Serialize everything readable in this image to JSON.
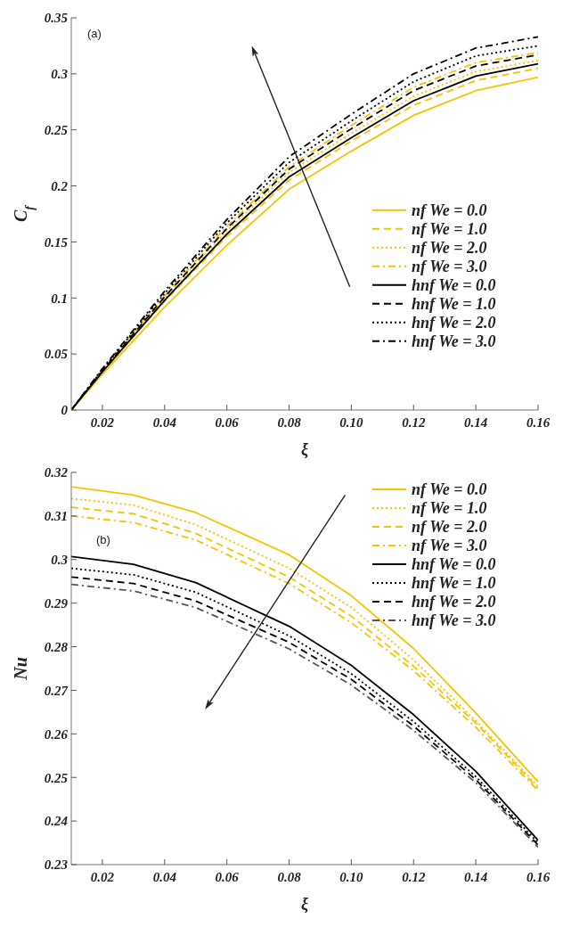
{
  "chart_data": [
    {
      "type": "line",
      "xlabel": "ξ",
      "ylabel": "C$_{f}$",
      "annotations": [
        "(a)"
      ],
      "legend": "right",
      "grid": false,
      "x": [
        0.01,
        0.02,
        0.04,
        0.06,
        0.08,
        0.1,
        0.12,
        0.14,
        0.16
      ],
      "xlim": [
        0.01,
        0.16
      ],
      "xticks": [
        0.02,
        0.04,
        0.06,
        0.08,
        {
          "value": 0.1,
          "label": "0.10"
        },
        0.12,
        0.14,
        0.16
      ],
      "ylim": [
        0,
        0.35
      ],
      "yticks": [
        0,
        0.05,
        0.1,
        0.15,
        0.2,
        0.25,
        0.3,
        0.35
      ],
      "series": [
        {
          "name": "nf We = 0.0",
          "color": "#f5c400",
          "line_style": "solid",
          "values": [
            0,
            0.032,
            0.092,
            0.147,
            0.197,
            0.231,
            0.263,
            0.285,
            0.297
          ]
        },
        {
          "name": "nf We = 1.0",
          "color": "#f5c400",
          "line_style": "dashed",
          "values": [
            0,
            0.034,
            0.097,
            0.155,
            0.205,
            0.24,
            0.272,
            0.294,
            0.305
          ]
        },
        {
          "name": "nf We = 2.0",
          "color": "#f5c400",
          "line_style": "dotted",
          "values": [
            0,
            0.035,
            0.1,
            0.16,
            0.212,
            0.247,
            0.28,
            0.302,
            0.312
          ]
        },
        {
          "name": "nf We = 3.0",
          "color": "#f5c400",
          "line_style": "dashdot",
          "values": [
            0,
            0.036,
            0.102,
            0.164,
            0.217,
            0.254,
            0.288,
            0.31,
            0.319
          ]
        },
        {
          "name": "hnf We = 0.0",
          "color": "#000000",
          "line_style": "solid",
          "values": [
            0,
            0.034,
            0.098,
            0.157,
            0.208,
            0.243,
            0.276,
            0.298,
            0.309
          ]
        },
        {
          "name": "hnf We = 1.0",
          "color": "#000000",
          "line_style": "dashed",
          "values": [
            0,
            0.035,
            0.101,
            0.162,
            0.215,
            0.251,
            0.285,
            0.307,
            0.317
          ]
        },
        {
          "name": "hnf We = 2.0",
          "color": "#000000",
          "line_style": "dotted",
          "values": [
            0,
            0.036,
            0.104,
            0.167,
            0.221,
            0.258,
            0.293,
            0.316,
            0.325
          ]
        },
        {
          "name": "hnf We = 3.0",
          "color": "#000000",
          "line_style": "dashdot",
          "values": [
            0,
            0.037,
            0.106,
            0.17,
            0.226,
            0.264,
            0.3,
            0.323,
            0.333
          ]
        }
      ]
    },
    {
      "type": "line",
      "xlabel": "ξ",
      "ylabel": "Nu",
      "annotations": [
        "(b)"
      ],
      "legend": "top right",
      "grid": false,
      "x": [
        0.01,
        0.03,
        0.05,
        0.08,
        0.1,
        0.12,
        0.14,
        0.16
      ],
      "xlim": [
        0.01,
        0.16
      ],
      "xticks": [
        0.02,
        0.04,
        0.06,
        0.08,
        {
          "value": 0.1,
          "label": "0.10"
        },
        0.12,
        0.14,
        0.16
      ],
      "ylim": [
        0.23,
        0.32
      ],
      "yticks": [
        0.23,
        0.24,
        0.25,
        0.26,
        0.27,
        0.28,
        0.29,
        0.3,
        0.31,
        0.32
      ],
      "series": [
        {
          "name": "nf We = 0.0",
          "color": "#f5c400",
          "line_style": "solid",
          "values": [
            0.3167,
            0.3148,
            0.3108,
            0.3011,
            0.2917,
            0.2796,
            0.2648,
            0.249
          ]
        },
        {
          "name": "nf We = 1.0",
          "color": "#f5c400",
          "line_style": "dotted",
          "values": [
            0.314,
            0.3125,
            0.308,
            0.298,
            0.289,
            0.277,
            0.263,
            0.248
          ]
        },
        {
          "name": "nf We = 2.0",
          "color": "#f5c400",
          "line_style": "dashed",
          "values": [
            0.312,
            0.3105,
            0.306,
            0.296,
            0.287,
            0.2755,
            0.2625,
            0.2475
          ]
        },
        {
          "name": "nf We = 3.0",
          "color": "#f5c400",
          "line_style": "dashdot",
          "values": [
            0.31,
            0.3085,
            0.3045,
            0.2945,
            0.2855,
            0.2745,
            0.2615,
            0.247
          ]
        },
        {
          "name": "hnf We = 0.0",
          "color": "#000000",
          "line_style": "solid",
          "values": [
            0.3007,
            0.2989,
            0.2947,
            0.2847,
            0.2757,
            0.2644,
            0.2514,
            0.2356
          ]
        },
        {
          "name": "hnf We = 1.0",
          "color": "#000000",
          "line_style": "dotted",
          "values": [
            0.298,
            0.2965,
            0.2925,
            0.2825,
            0.2738,
            0.2628,
            0.2502,
            0.235
          ]
        },
        {
          "name": "hnf We = 2.0",
          "color": "#000000",
          "line_style": "dashed",
          "values": [
            0.296,
            0.2945,
            0.2905,
            0.281,
            0.2725,
            0.2618,
            0.2495,
            0.2345
          ]
        },
        {
          "name": "hnf We = 3.0",
          "color": "#555555",
          "line_style": "dashdot",
          "values": [
            0.2943,
            0.2928,
            0.289,
            0.2795,
            0.2712,
            0.2608,
            0.2488,
            0.234
          ]
        }
      ]
    }
  ]
}
